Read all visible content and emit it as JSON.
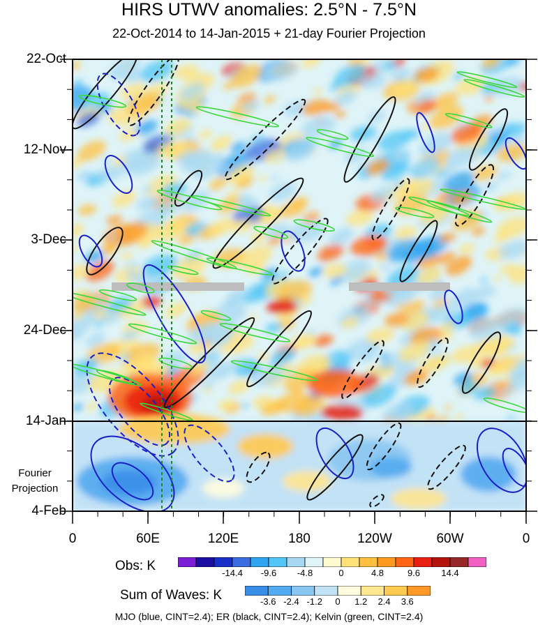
{
  "chart_data": {
    "type": "heatmap",
    "title": "HIRS UTWV anomalies: 2.5°N - 7.5°N",
    "subtitle": "22-Oct-2014 to 14-Jan-2015 + 21-day Fourier Projection",
    "y_ticks": [
      "22-Oct",
      "12-Nov",
      "3-Dec",
      "24-Dec",
      "14-Jan",
      "4-Feb"
    ],
    "x_ticks": [
      "0",
      "60E",
      "120E",
      "180",
      "120W",
      "60W",
      "0"
    ],
    "x_range": [
      0,
      360
    ],
    "projection_label": [
      "Fourier",
      "Projection"
    ],
    "obs_colorbar": {
      "label": "Obs: K",
      "tick_labels": [
        "-14.4",
        "-9.6",
        "-4.8",
        "0",
        "4.8",
        "9.6",
        "14.4"
      ],
      "colors": [
        "#7a1fd6",
        "#1a0fa0",
        "#1a2ec8",
        "#3a6ee0",
        "#2ea3f0",
        "#52c6f5",
        "#a8d8f2",
        "#dff4f8",
        "#fffbd0",
        "#ffe27a",
        "#ffc040",
        "#ff9a20",
        "#ff6414",
        "#e82010",
        "#b41410",
        "#962828",
        "#f060c0"
      ]
    },
    "waves_colorbar": {
      "label": "Sum of Waves: K",
      "tick_labels": [
        "-3.6",
        "-2.4",
        "-1.2",
        "0",
        "1.2",
        "2.4",
        "3.6"
      ],
      "colors": [
        "#3a8ee8",
        "#52aaf0",
        "#8ac6f2",
        "#c2e2f6",
        "#fffce0",
        "#ffe690",
        "#ffca50",
        "#ff9a28"
      ]
    },
    "contours": [
      {
        "wave": "MJO",
        "color": "blue",
        "cint": 2.4
      },
      {
        "wave": "ER",
        "color": "black",
        "cint": 2.4
      },
      {
        "wave": "Kelvin",
        "color": "green",
        "cint": 2.4
      }
    ],
    "footer": "MJO (blue, CINT=2.4); ER (black, CINT=2.4); Kelvin (green, CINT=2.4)"
  }
}
